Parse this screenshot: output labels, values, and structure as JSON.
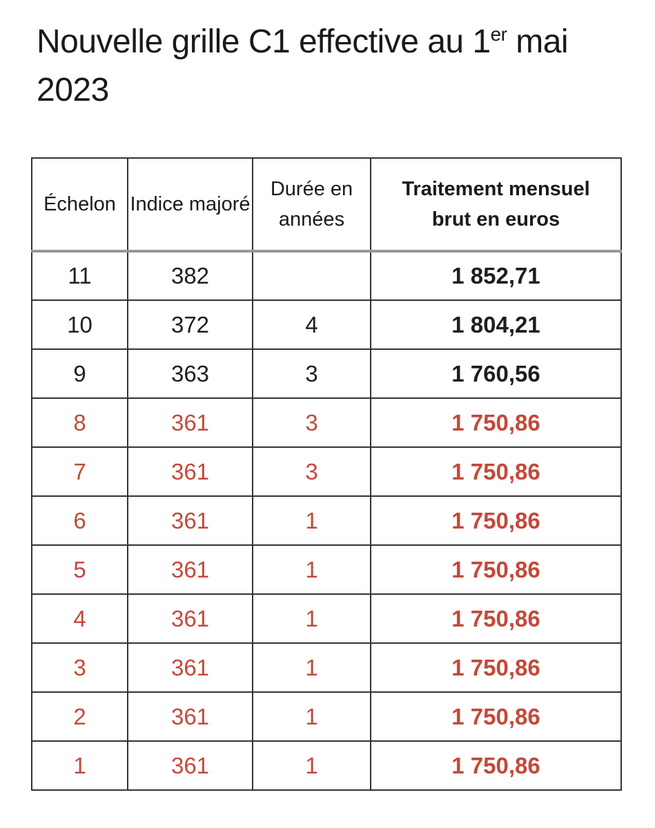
{
  "title": {
    "text_before_sup": "Nouvelle grille C1 effective au 1",
    "sup": "er",
    "text_after_sup": " mai 2023"
  },
  "table": {
    "headers": [
      {
        "lines": [
          "Échelon"
        ]
      },
      {
        "lines": [
          "Indice majoré"
        ]
      },
      {
        "lines": [
          "Durée en",
          "années"
        ]
      },
      {
        "lines": [
          "Traitement mensuel",
          "brut en euros"
        ]
      }
    ],
    "rows": [
      {
        "echelon": "11",
        "indice_majore": "382",
        "duree_annees": "",
        "traitement_mensuel": "1 852,71",
        "highlighted": false
      },
      {
        "echelon": "10",
        "indice_majore": "372",
        "duree_annees": "4",
        "traitement_mensuel": "1 804,21",
        "highlighted": false
      },
      {
        "echelon": "9",
        "indice_majore": "363",
        "duree_annees": "3",
        "traitement_mensuel": "1 760,56",
        "highlighted": false
      },
      {
        "echelon": "8",
        "indice_majore": "361",
        "duree_annees": "3",
        "traitement_mensuel": "1 750,86",
        "highlighted": true
      },
      {
        "echelon": "7",
        "indice_majore": "361",
        "duree_annees": "3",
        "traitement_mensuel": "1 750,86",
        "highlighted": true
      },
      {
        "echelon": "6",
        "indice_majore": "361",
        "duree_annees": "1",
        "traitement_mensuel": "1 750,86",
        "highlighted": true
      },
      {
        "echelon": "5",
        "indice_majore": "361",
        "duree_annees": "1",
        "traitement_mensuel": "1 750,86",
        "highlighted": true
      },
      {
        "echelon": "4",
        "indice_majore": "361",
        "duree_annees": "1",
        "traitement_mensuel": "1 750,86",
        "highlighted": true
      },
      {
        "echelon": "3",
        "indice_majore": "361",
        "duree_annees": "1",
        "traitement_mensuel": "1 750,86",
        "highlighted": true
      },
      {
        "echelon": "2",
        "indice_majore": "361",
        "duree_annees": "1",
        "traitement_mensuel": "1 750,86",
        "highlighted": true
      },
      {
        "echelon": "1",
        "indice_majore": "361",
        "duree_annees": "1",
        "traitement_mensuel": "1 750,86",
        "highlighted": true
      }
    ]
  },
  "colors": {
    "highlight_red": "#c3493a",
    "text_black": "#1e1e1e",
    "grid_line": "#333333",
    "header_separator": "#979797",
    "background": "#ffffff"
  }
}
